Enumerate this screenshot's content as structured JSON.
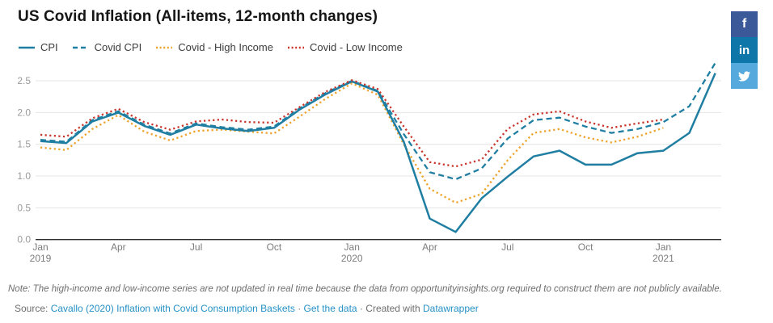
{
  "header": {
    "title": "US Covid Inflation (All-items, 12-month changes)"
  },
  "share": {
    "colors": [
      "#3b5998",
      "#0e76a8",
      "#56a9dc"
    ],
    "facebook_glyph": "f",
    "linkedin_glyph": "in"
  },
  "chart_data": {
    "type": "line",
    "title": "US Covid Inflation (All-items, 12-month changes)",
    "x_unit": "month",
    "x": [
      "Jan 2019",
      "Feb 2019",
      "Mar 2019",
      "Apr 2019",
      "May 2019",
      "Jun 2019",
      "Jul 2019",
      "Aug 2019",
      "Sep 2019",
      "Oct 2019",
      "Nov 2019",
      "Dec 2019",
      "Jan 2020",
      "Feb 2020",
      "Mar 2020",
      "Apr 2020",
      "May 2020",
      "Jun 2020",
      "Jul 2020",
      "Aug 2020",
      "Sep 2020",
      "Oct 2020",
      "Nov 2020",
      "Dec 2020",
      "Jan 2021",
      "Feb 2021",
      "Mar 2021"
    ],
    "xticks": [
      {
        "i": 0,
        "label": "Jan",
        "year": "2019"
      },
      {
        "i": 3,
        "label": "Apr",
        "year": ""
      },
      {
        "i": 6,
        "label": "Jul",
        "year": ""
      },
      {
        "i": 9,
        "label": "Oct",
        "year": ""
      },
      {
        "i": 12,
        "label": "Jan",
        "year": "2020"
      },
      {
        "i": 15,
        "label": "Apr",
        "year": ""
      },
      {
        "i": 18,
        "label": "Jul",
        "year": ""
      },
      {
        "i": 21,
        "label": "Oct",
        "year": ""
      },
      {
        "i": 24,
        "label": "Jan",
        "year": "2021"
      }
    ],
    "yticks": [
      "0.0",
      "0.5",
      "1.0",
      "1.5",
      "2.0",
      "2.5"
    ],
    "ylim": [
      0,
      2.85
    ],
    "grid": true,
    "legend_position": "top-left",
    "colors": {
      "grid": "#e4e4e4",
      "axis": "#2e2e2e",
      "ytick_text": "#9b9b9b",
      "xtick_text": "#7c7c7c"
    },
    "draw_order": [
      2,
      1,
      0,
      3
    ],
    "series": [
      {
        "name": "CPI",
        "style": "solid",
        "color": "#1f7ea1",
        "values": [
          1.55,
          1.52,
          1.86,
          2.0,
          1.79,
          1.65,
          1.81,
          1.75,
          1.71,
          1.76,
          2.05,
          2.29,
          2.49,
          2.33,
          1.54,
          0.33,
          0.12,
          0.65,
          0.99,
          1.31,
          1.4,
          1.18,
          1.18,
          1.36,
          1.4,
          1.68,
          2.62
        ]
      },
      {
        "name": "Covid CPI",
        "style": "dashed",
        "color": "#1f7ea1",
        "values": [
          1.57,
          1.54,
          1.88,
          2.02,
          1.81,
          1.67,
          1.83,
          1.77,
          1.73,
          1.78,
          2.07,
          2.31,
          2.5,
          2.34,
          1.66,
          1.06,
          0.95,
          1.12,
          1.59,
          1.88,
          1.92,
          1.78,
          1.68,
          1.74,
          1.85,
          2.1,
          2.78
        ]
      },
      {
        "name": "Covid - High Income",
        "style": "dotted",
        "color": "#efa229",
        "values": [
          1.45,
          1.41,
          1.74,
          1.96,
          1.7,
          1.56,
          1.71,
          1.73,
          1.7,
          1.67,
          1.94,
          2.22,
          2.46,
          2.28,
          1.5,
          0.8,
          0.58,
          0.72,
          1.25,
          1.68,
          1.74,
          1.61,
          1.53,
          1.62,
          1.76
        ]
      },
      {
        "name": "Covid - Low Income",
        "style": "dotted",
        "color": "#c9342b",
        "values": [
          1.65,
          1.62,
          1.91,
          2.06,
          1.85,
          1.73,
          1.86,
          1.89,
          1.85,
          1.84,
          2.09,
          2.33,
          2.51,
          2.37,
          1.78,
          1.22,
          1.15,
          1.26,
          1.74,
          1.97,
          2.02,
          1.86,
          1.76,
          1.83,
          1.89
        ]
      }
    ]
  },
  "footer": {
    "note": "Note: The high-income and low-income series are not updated in real time because the data from opportunityinsights.org required to construct them are not publicly available.",
    "source_label": "Source:",
    "source_link": "Cavallo (2020) Inflation with Covid Consumption Baskets",
    "separator": "·",
    "data_link": "Get the data",
    "created_label": "Created with",
    "created_link": "Datawrapper"
  }
}
